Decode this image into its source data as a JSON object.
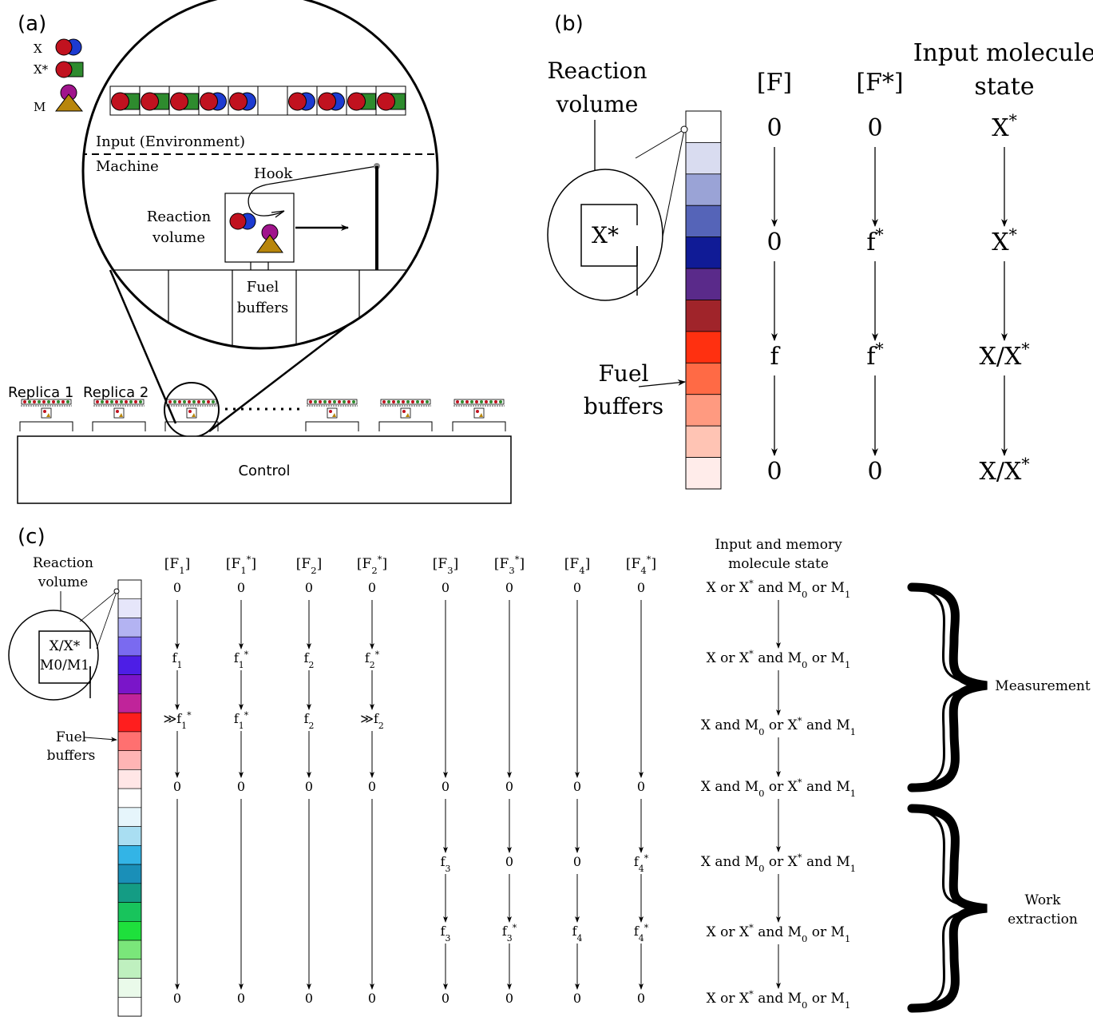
{
  "panel_a": {
    "label": "(a)",
    "legend": [
      "X",
      "X*",
      "M"
    ],
    "input_label": "Input (Environment)",
    "machine_label": "Machine",
    "hook_label": "Hook",
    "reaction_label_1": "Reaction",
    "reaction_label_2": "volume",
    "fuel_label_1": "Fuel",
    "fuel_label_2": "buffers",
    "replica_1": "Replica 1",
    "replica_2": "Replica 2",
    "control_label": "Control",
    "tape_colors": {
      "red": "#c1121f",
      "blue": "#1d3bd1",
      "green": "#2e8b2e",
      "purple": "#a0148c",
      "brown": "#b8860b"
    }
  },
  "panel_b": {
    "label": "(b)",
    "reaction_label_1": "Reaction",
    "reaction_label_2": "volume",
    "inset_text": "X*",
    "fuel_label_1": "Fuel",
    "fuel_label_2": "buffers",
    "headers": [
      "[F]",
      "[F*]",
      "Input molecule",
      "state"
    ],
    "rows": [
      [
        "0",
        "0",
        "X*"
      ],
      [
        "0",
        "f*",
        "X*"
      ],
      [
        "f",
        "f*",
        "X/X*"
      ],
      [
        "0",
        "0",
        "X/X*"
      ]
    ],
    "buffer_colors": [
      "#ffffff",
      "#d9dcf0",
      "#9aa3d6",
      "#5564b8",
      "#101b96",
      "#5a2a8a",
      "#a0242a",
      "#ff3010",
      "#ff6a45",
      "#ff9a80",
      "#ffc4b4",
      "#ffecea"
    ]
  },
  "panel_c": {
    "label": "(c)",
    "reaction_label_1": "Reaction",
    "reaction_label_2": "volume",
    "inset_line_1": "X/X*",
    "inset_line_2": "M0/M1",
    "fuel_label_1": "Fuel",
    "fuel_label_2": "buffers",
    "headers": [
      "[F1]",
      "[F1*]",
      "[F2]",
      "[F2*]",
      "[F3]",
      "[F3*]",
      "[F4]",
      "[F4*]"
    ],
    "state_header_1": "Input and memory",
    "state_header_2": "molecule state",
    "grid": [
      [
        "0",
        "0",
        "0",
        "0",
        "0",
        "0",
        "0",
        "0"
      ],
      [
        "f1",
        "f1*",
        "f2",
        "f2*",
        "",
        "",
        "",
        ""
      ],
      [
        "≫f1*",
        "f1*",
        "f2",
        "≫f2",
        "",
        "",
        "",
        ""
      ],
      [
        "0",
        "0",
        "0",
        "0",
        "0",
        "0",
        "0",
        "0"
      ],
      [
        "",
        "",
        "",
        "",
        "f3",
        "0",
        "0",
        "f4*"
      ],
      [
        "",
        "",
        "",
        "",
        "f3",
        "f3*",
        "f4",
        "f4*"
      ],
      [
        "0",
        "0",
        "0",
        "0",
        "0",
        "0",
        "0",
        "0"
      ]
    ],
    "states": [
      "X or X* and M0 or M1",
      "X or X* and M0 or M1",
      "X and M0 or X* and M1",
      "X and M0 or X* and M1",
      "X and M0 or X* and M1",
      "X or X* and M0 or M1",
      "X or X* and M0 or M1"
    ],
    "measurement_label": "Measurement",
    "work_label_1": "Work",
    "work_label_2": "extraction",
    "buffer_colors": [
      "#ffffff",
      "#e6e6fa",
      "#b3b3f2",
      "#7a6af0",
      "#4d1ee6",
      "#7a15c9",
      "#c0249a",
      "#ff1e1e",
      "#ff7070",
      "#ffb4b4",
      "#ffe6e6",
      "#ffffff",
      "#e6f5fb",
      "#a9def2",
      "#33b4e6",
      "#1a8fb8",
      "#149c84",
      "#18c45c",
      "#1ee03c",
      "#7ae67a",
      "#bff0bf",
      "#eafaea",
      "#ffffff"
    ]
  }
}
